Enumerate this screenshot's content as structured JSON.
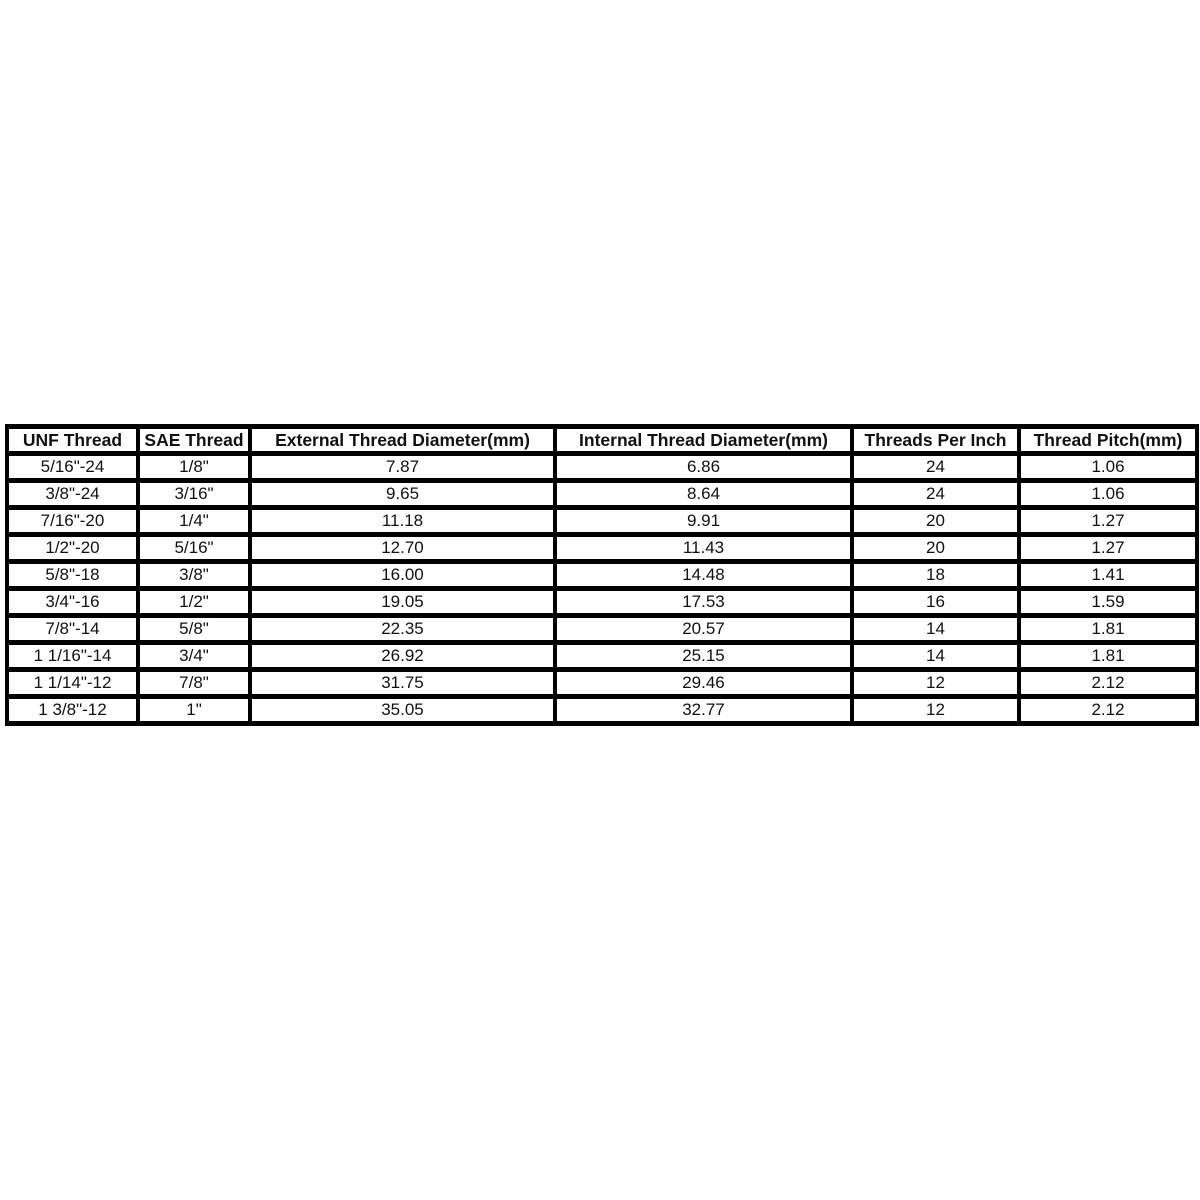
{
  "table": {
    "headers": [
      "UNF Thread",
      "SAE Thread",
      "External Thread Diameter(mm)",
      "Internal Thread Diameter(mm)",
      "Threads Per Inch",
      "Thread Pitch(mm)"
    ],
    "rows": [
      [
        "5/16\"-24",
        "1/8\"",
        "7.87",
        "6.86",
        "24",
        "1.06"
      ],
      [
        "3/8\"-24",
        "3/16\"",
        "9.65",
        "8.64",
        "24",
        "1.06"
      ],
      [
        "7/16\"-20",
        "1/4\"",
        "11.18",
        "9.91",
        "20",
        "1.27"
      ],
      [
        "1/2\"-20",
        "5/16\"",
        "12.70",
        "11.43",
        "20",
        "1.27"
      ],
      [
        "5/8\"-18",
        "3/8\"",
        "16.00",
        "14.48",
        "18",
        "1.41"
      ],
      [
        "3/4\"-16",
        "1/2\"",
        "19.05",
        "17.53",
        "16",
        "1.59"
      ],
      [
        "7/8\"-14",
        "5/8\"",
        "22.35",
        "20.57",
        "14",
        "1.81"
      ],
      [
        "1 1/16\"-14",
        "3/4\"",
        "26.92",
        "25.15",
        "14",
        "1.81"
      ],
      [
        "1 1/14\"-12",
        "7/8\"",
        "31.75",
        "29.46",
        "12",
        "2.12"
      ],
      [
        "1 3/8\"-12",
        "1\"",
        "35.05",
        "32.77",
        "12",
        "2.12"
      ]
    ],
    "colors": {
      "border": "#000000",
      "text": "#111111",
      "background": "#ffffff"
    }
  }
}
